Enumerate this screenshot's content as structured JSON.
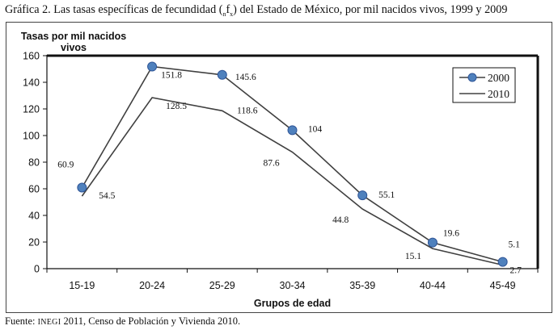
{
  "title": {
    "before": "Gráfica 2. Las tasas específicas de fecundidad (",
    "sym_pre": "",
    "sym_n": "n",
    "sym_f": "f",
    "sym_x": "x",
    "after": ") del Estado de México, por mil nacidos vivos, 1999 y 2009"
  },
  "source": {
    "prefix": "Fuente: ",
    "org": "INEGI",
    "rest": " 2011, Censo de Población y Vivienda 2010."
  },
  "chart_data": {
    "type": "line",
    "title": "Gráfica 2. Las tasas específicas de fecundidad (nfx) del Estado de México, por mil nacidos vivos, 1999 y 2009",
    "ylabel_line1": "Tasas por mil nacidos",
    "ylabel_line2": "vivos",
    "xlabel": "Grupos de edad",
    "categories": [
      "15-19",
      "20-24",
      "25-29",
      "30-34",
      "35-39",
      "40-44",
      "45-49"
    ],
    "ylim": [
      0,
      160
    ],
    "yticks": [
      0,
      20,
      40,
      60,
      80,
      100,
      120,
      140,
      160
    ],
    "series": [
      {
        "name": "2000",
        "marker": "circle",
        "color": "#4f81bd",
        "line_color": "#404040",
        "values": [
          60.9,
          151.8,
          145.6,
          104,
          55.1,
          19.6,
          5.1
        ],
        "labels": [
          "60.9",
          "151.8",
          "145.6",
          "104",
          "55.1",
          "19.6",
          "5.1"
        ]
      },
      {
        "name": "2010",
        "marker": "none",
        "color": "#404040",
        "line_color": "#404040",
        "values": [
          54.5,
          128.5,
          118.6,
          87.6,
          44.8,
          15.1,
          2.7
        ],
        "labels": [
          "54.5",
          "128.5",
          "118.6",
          "87.6",
          "44.8",
          "15.1",
          "2.7"
        ]
      }
    ],
    "legend_position": "top-right"
  }
}
